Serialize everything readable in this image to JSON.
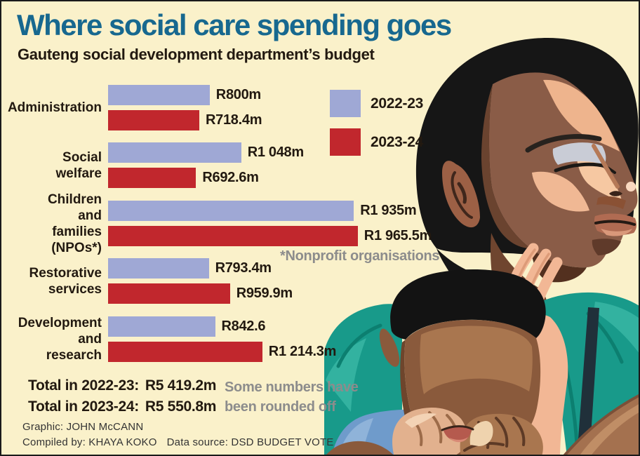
{
  "title": "Where social care spending goes",
  "subtitle": "Gauteng social development department’s budget",
  "colors": {
    "background": "#FAF1CA",
    "title_accent": "#17688F",
    "bar_2022_23": "#9FA8D5",
    "bar_2023_24": "#C1272D",
    "muted_note": "#8C8C8C",
    "woman_shirt_teal": "#189A8A",
    "child_shirt_blue": "#6F9BCB"
  },
  "legend": [
    {
      "label": "2022-23",
      "color": "#9FA8D5"
    },
    {
      "label": "2023-24",
      "color": "#C1272D"
    }
  ],
  "chart_data": {
    "type": "bar",
    "orientation": "horizontal",
    "unit": "R million (South African rand)",
    "title": "Where social care spending goes",
    "subtitle": "Gauteng social development department’s budget",
    "categories": [
      "Administration",
      "Social welfare",
      "Children and families (NPOs*)",
      "Restorative services",
      "Development and research"
    ],
    "categories_display": [
      [
        "Administration",
        ""
      ],
      [
        "Social welfare",
        ""
      ],
      [
        "Children and",
        "families (NPOs*)"
      ],
      [
        "Restorative",
        "services"
      ],
      [
        "Development",
        "and research"
      ]
    ],
    "series": [
      {
        "name": "2022-23",
        "color": "#9FA8D5",
        "values": [
          800,
          1048,
          1935,
          793.4,
          842.6
        ],
        "labels": [
          "R800m",
          "R1 048m",
          "R1 935m",
          "R793.4m",
          "R842.6"
        ]
      },
      {
        "name": "2023-24",
        "color": "#C1272D",
        "values": [
          718.4,
          692.6,
          1965.5,
          959.9,
          1214.3
        ],
        "labels": [
          "R718.4m",
          "R692.6m",
          "R1 965.5m",
          "R959.9m",
          "R1 214.3m"
        ]
      }
    ],
    "xlim": [
      0,
      2000
    ],
    "grid": false,
    "legend_position": "top-right"
  },
  "footnote_npo": "*Nonprofit organisations",
  "totals": [
    {
      "label": "Total in 2022-23:",
      "value": "R5 419.2m"
    },
    {
      "label": "Total in 2023-24:",
      "value": "R5 550.8m"
    }
  ],
  "rounding_note": [
    "Some numbers have",
    "been rounded off"
  ],
  "credits": {
    "graphic": "Graphic: JOHN McCANN",
    "compiled": "Compiled by: KHAYA KOKO",
    "source": "Data source: DSD BUDGET VOTE"
  }
}
